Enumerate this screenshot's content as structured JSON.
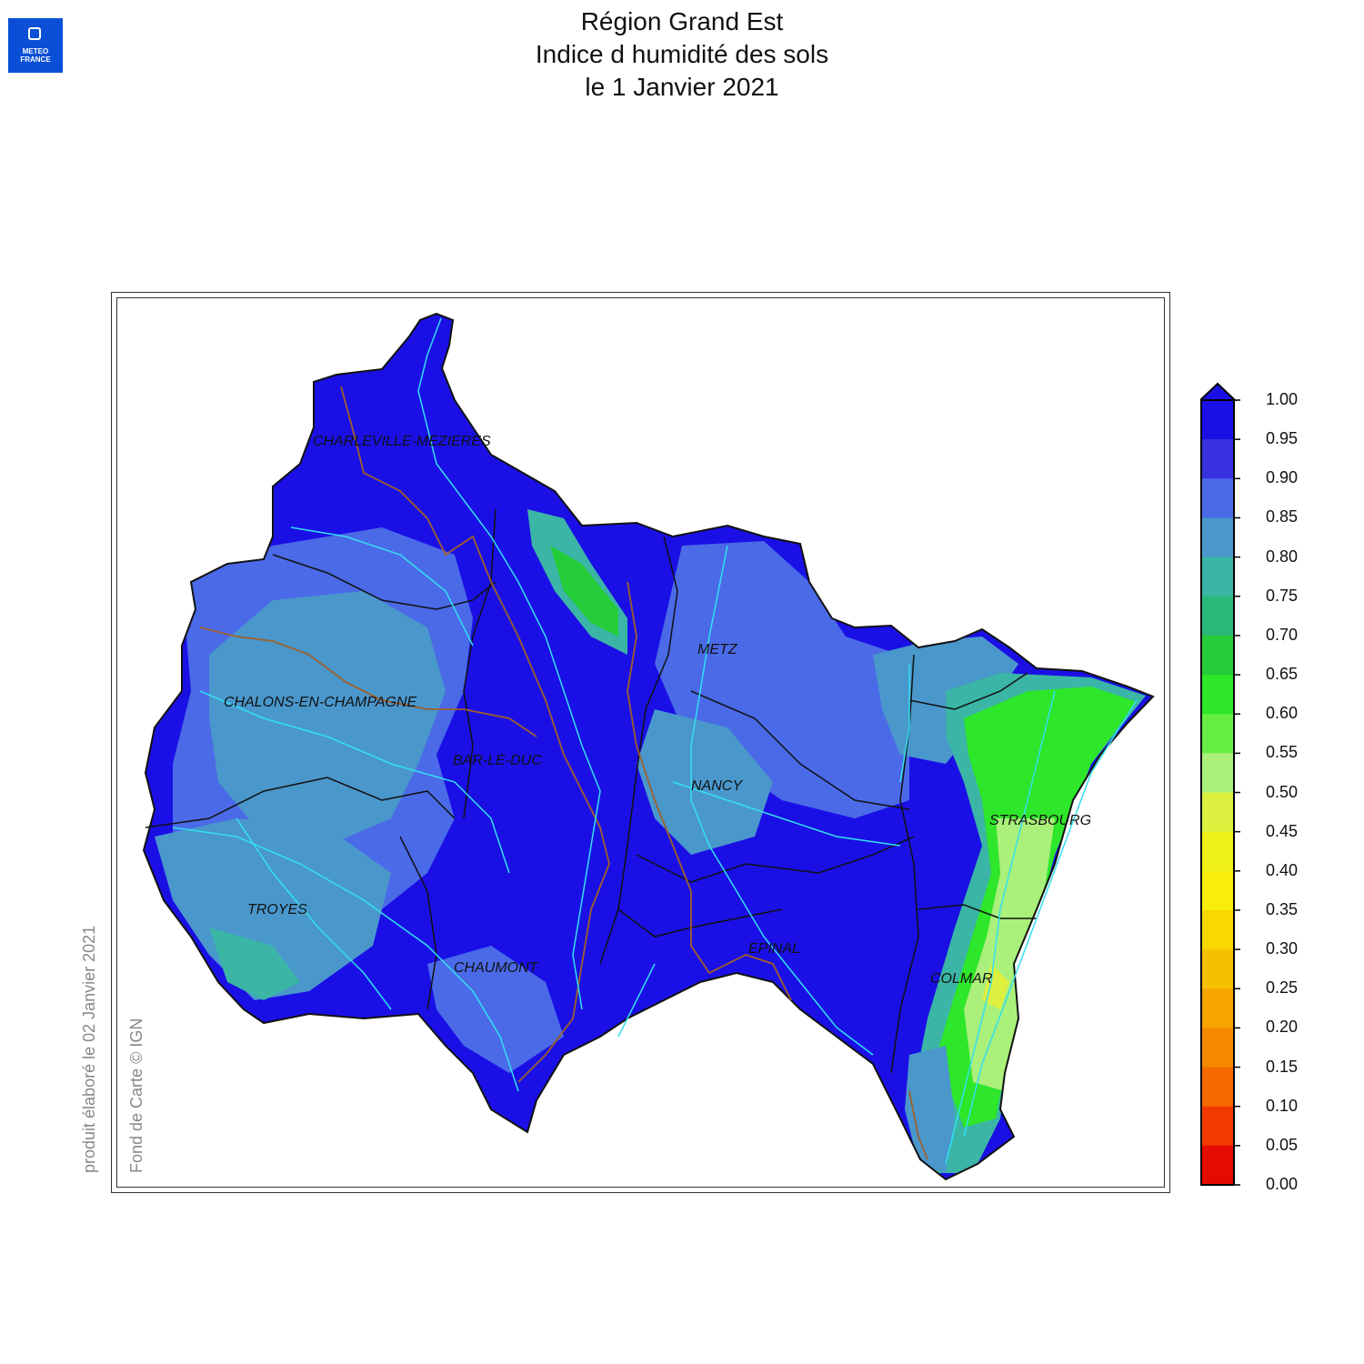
{
  "logo": {
    "line1": "METEO",
    "line2": "FRANCE"
  },
  "title": {
    "line1": "Région Grand Est",
    "line2": "Indice d humidité des sols",
    "line3": "le 1 Janvier 2021"
  },
  "side_text": {
    "produced": "produit élaboré le 02 Janvier 2021",
    "credit": "Fond de Carte © IGN"
  },
  "cities": [
    "CHARLEVILLE-MEZIERES",
    "METZ",
    "CHALONS-EN-CHAMPAGNE",
    "BAR-LE-DUC",
    "NANCY",
    "STRASBOURG",
    "TROYES",
    "CHAUMONT",
    "EPINAL",
    "COLMAR"
  ],
  "legend": {
    "labels": [
      "1.00",
      "0.95",
      "0.90",
      "0.85",
      "0.80",
      "0.75",
      "0.70",
      "0.65",
      "0.60",
      "0.55",
      "0.50",
      "0.45",
      "0.40",
      "0.35",
      "0.30",
      "0.25",
      "0.20",
      "0.15",
      "0.10",
      "0.05",
      "0.00"
    ],
    "colors": [
      "#1a10e6",
      "#3a32e0",
      "#4a6ae8",
      "#4a97cc",
      "#3ab5a6",
      "#2ab87a",
      "#24cc3a",
      "#2ee62a",
      "#66ee44",
      "#aaf07a",
      "#ddf040",
      "#eef018",
      "#f8ee0c",
      "#f7d800",
      "#f5c000",
      "#f7a300",
      "#f58a00",
      "#f56a00",
      "#f23a00",
      "#e60a00"
    ],
    "extend": "top"
  },
  "colors": {
    "region_fill": "#1a10e6",
    "dept_border": "#111111",
    "river": "#33e0f0",
    "basin_border": "#a0602a"
  }
}
